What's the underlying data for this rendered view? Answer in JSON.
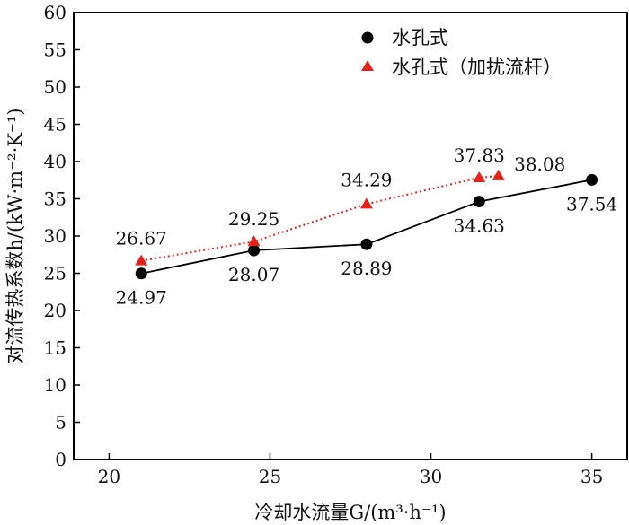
{
  "chart_data": {
    "type": "line",
    "xlabel": "冷却水流量G/(m³·h⁻¹)",
    "ylabel": "对流传热系数h/(kW·m⁻²·K⁻¹)",
    "xlim": [
      18.9,
      36.1
    ],
    "ylim": [
      0,
      60
    ],
    "xticks": [
      20,
      25,
      30,
      35
    ],
    "yticks": [
      0,
      5,
      10,
      15,
      20,
      25,
      30,
      35,
      40,
      45,
      50,
      55,
      60
    ],
    "grid": false,
    "legend_position": "top-right",
    "series": [
      {
        "name": "水孔式",
        "marker": "circle",
        "line": "solid",
        "color": "#000000",
        "x": [
          21,
          24.5,
          28,
          31.5,
          35
        ],
        "values": [
          24.97,
          28.07,
          28.89,
          34.63,
          37.54
        ],
        "labels": [
          "24.97",
          "28.07",
          "28.89",
          "34.63",
          "37.54"
        ]
      },
      {
        "name": "水孔式（加扰流杆）",
        "marker": "triangle",
        "line": "dotted",
        "color": "#e8201a",
        "x": [
          21,
          24.5,
          28,
          31.5,
          32.1
        ],
        "values": [
          26.67,
          29.25,
          34.29,
          37.83,
          38.08
        ],
        "labels": [
          "26.67",
          "29.25",
          "34.29",
          "37.83",
          "38.08"
        ]
      }
    ]
  }
}
